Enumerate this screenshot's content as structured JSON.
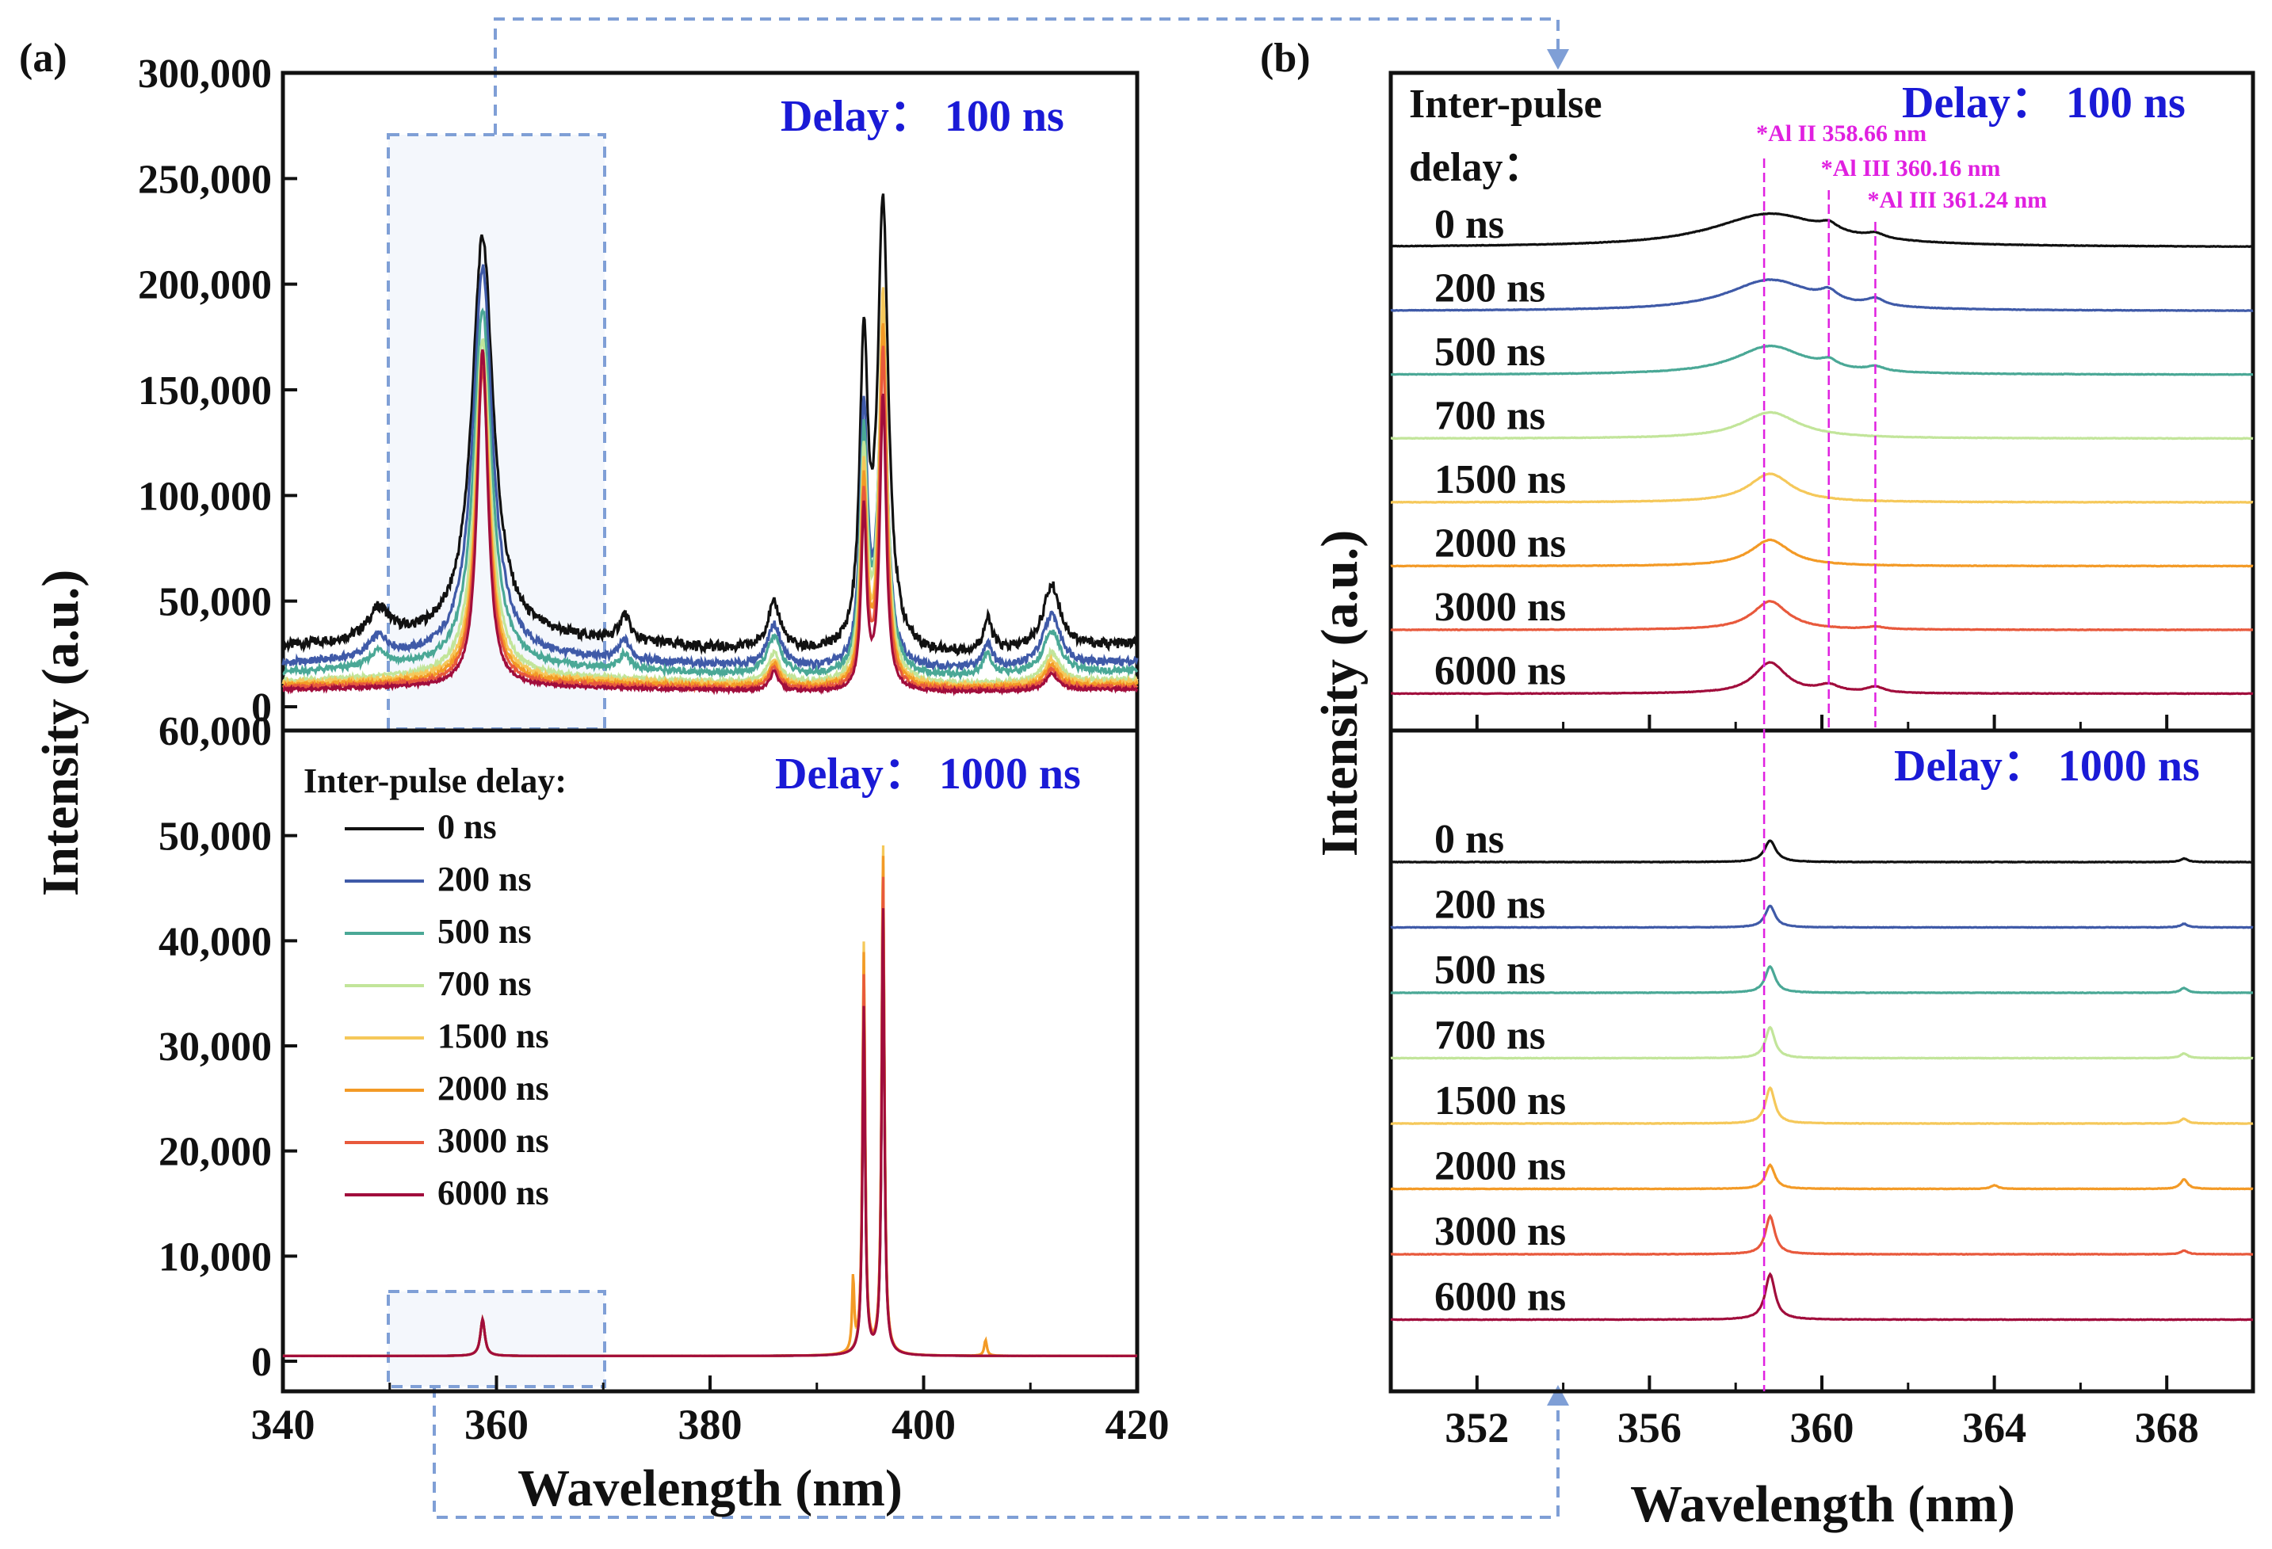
{
  "panel_labels": {
    "a": "(a)",
    "b": "(b)"
  },
  "colors": {
    "series": [
      "#111111",
      "#3f5aa8",
      "#4aa896",
      "#c2e59a",
      "#f5c85a",
      "#f39a26",
      "#e8593c",
      "#a10d3c"
    ],
    "delay_text": "#1a1ad6",
    "line_marker": "#e020e0",
    "zoom_box": "#7f9fd6"
  },
  "chart_data": [
    {
      "panel": "a-top",
      "type": "line",
      "title": "Delay：  100 ns",
      "xlabel": "Wavelength (nm)",
      "ylabel": "Intensity (a.u.)",
      "xlim": [
        340,
        420
      ],
      "ylim": [
        0,
        300000
      ],
      "yticks": [
        "0",
        "50,000",
        "100,000",
        "150,000",
        "200,000",
        "250,000",
        "300,000"
      ],
      "series": [
        {
          "name": "0 ns",
          "baseline": 28000,
          "peaks": [
            [
              349,
              14000,
              1.2
            ],
            [
              358.7,
              190000,
              1.2
            ],
            [
              372,
              12000,
              0.6
            ],
            [
              386,
              22000,
              0.8
            ],
            [
              394.4,
              140000,
              0.45
            ],
            [
              396.2,
              210000,
              0.6
            ],
            [
              406,
              15000,
              0.5
            ],
            [
              412,
              30000,
              1.0
            ]
          ]
        },
        {
          "name": "200 ns",
          "baseline": 20000,
          "peaks": [
            [
              349,
              10000,
              1.1
            ],
            [
              358.7,
              185000,
              1.1
            ],
            [
              372,
              9000,
              0.6
            ],
            [
              386,
              20000,
              0.8
            ],
            [
              394.4,
              120000,
              0.4
            ],
            [
              396.2,
              150000,
              0.5
            ],
            [
              406,
              12000,
              0.5
            ],
            [
              412,
              24000,
              1.0
            ]
          ]
        },
        {
          "name": "500 ns",
          "baseline": 16000,
          "peaks": [
            [
              349,
              8000,
              1.0
            ],
            [
              358.7,
              170000,
              1.0
            ],
            [
              372,
              7000,
              0.6
            ],
            [
              386,
              18000,
              0.8
            ],
            [
              394.4,
              110000,
              0.4
            ],
            [
              396.2,
              155000,
              0.5
            ],
            [
              406,
              10000,
              0.5
            ],
            [
              412,
              20000,
              1.0
            ]
          ]
        },
        {
          "name": "700 ns",
          "baseline": 12000,
          "peaks": [
            [
              358.7,
              160000,
              0.9
            ],
            [
              386,
              14000,
              0.7
            ],
            [
              394.4,
              105000,
              0.4
            ],
            [
              396.2,
              180000,
              0.45
            ],
            [
              412,
              14000,
              0.9
            ]
          ]
        },
        {
          "name": "1500 ns",
          "baseline": 11000,
          "peaks": [
            [
              358.7,
              155000,
              0.8
            ],
            [
              386,
              12000,
              0.6
            ],
            [
              394.4,
              100000,
              0.35
            ],
            [
              396.2,
              185000,
              0.4
            ],
            [
              412,
              12000,
              0.8
            ]
          ]
        },
        {
          "name": "2000 ns",
          "baseline": 10000,
          "peaks": [
            [
              358.7,
              150000,
              0.75
            ],
            [
              386,
              11000,
              0.6
            ],
            [
              394.4,
              95000,
              0.35
            ],
            [
              396.2,
              170000,
              0.4
            ],
            [
              412,
              10000,
              0.8
            ]
          ]
        },
        {
          "name": "3000 ns",
          "baseline": 9000,
          "peaks": [
            [
              358.7,
              150000,
              0.7
            ],
            [
              386,
              10000,
              0.6
            ],
            [
              394.4,
              90000,
              0.32
            ],
            [
              396.2,
              160000,
              0.38
            ],
            [
              412,
              9000,
              0.7
            ]
          ]
        },
        {
          "name": "6000 ns",
          "baseline": 8000,
          "peaks": [
            [
              358.7,
              160000,
              0.6
            ],
            [
              386,
              9000,
              0.5
            ],
            [
              394.4,
              85000,
              0.3
            ],
            [
              396.2,
              140000,
              0.35
            ],
            [
              412,
              8000,
              0.7
            ]
          ]
        }
      ]
    },
    {
      "panel": "a-bottom",
      "type": "line",
      "title": "Delay：  1000 ns",
      "xlabel": "Wavelength (nm)",
      "ylabel": "Intensity (a.u.)",
      "xlim": [
        340,
        420
      ],
      "xticks": [
        "340",
        "360",
        "380",
        "400",
        "420"
      ],
      "ylim": [
        0,
        60000
      ],
      "yticks": [
        "0",
        "10,000",
        "20,000",
        "30,000",
        "40,000",
        "50,000",
        "60,000"
      ],
      "legend_title": "Inter-pulse delay:",
      "series": [
        {
          "name": "0 ns",
          "baseline": 500,
          "peaks": [
            [
              358.7,
              3500,
              0.25
            ],
            [
              394.4,
              35000,
              0.15
            ],
            [
              396.2,
              45000,
              0.15
            ]
          ]
        },
        {
          "name": "200 ns",
          "baseline": 500,
          "peaks": [
            [
              358.7,
              3500,
              0.25
            ],
            [
              394.4,
              36000,
              0.15
            ],
            [
              396.2,
              46000,
              0.15
            ]
          ]
        },
        {
          "name": "500 ns",
          "baseline": 500,
          "peaks": [
            [
              358.7,
              3500,
              0.25
            ],
            [
              394.4,
              37000,
              0.15
            ],
            [
              396.2,
              47000,
              0.15
            ]
          ]
        },
        {
          "name": "700 ns",
          "baseline": 500,
          "peaks": [
            [
              358.7,
              3500,
              0.25
            ],
            [
              394.4,
              38000,
              0.15
            ],
            [
              396.2,
              48000,
              0.15
            ]
          ]
        },
        {
          "name": "1500 ns",
          "baseline": 500,
          "peaks": [
            [
              358.7,
              3500,
              0.25
            ],
            [
              393.4,
              6000,
              0.12
            ],
            [
              394.4,
              39000,
              0.15
            ],
            [
              396.2,
              49000,
              0.15
            ],
            [
              405.8,
              1500,
              0.15
            ]
          ]
        },
        {
          "name": "2000 ns",
          "baseline": 500,
          "peaks": [
            [
              358.7,
              3500,
              0.25
            ],
            [
              393.4,
              7000,
              0.12
            ],
            [
              394.4,
              38000,
              0.15
            ],
            [
              396.2,
              48000,
              0.15
            ],
            [
              405.8,
              1500,
              0.15
            ]
          ]
        },
        {
          "name": "3000 ns",
          "baseline": 500,
          "peaks": [
            [
              358.7,
              3500,
              0.25
            ],
            [
              394.4,
              36000,
              0.15
            ],
            [
              396.2,
              46000,
              0.15
            ]
          ]
        },
        {
          "name": "6000 ns",
          "baseline": 500,
          "peaks": [
            [
              358.7,
              3500,
              0.25
            ],
            [
              394.4,
              33000,
              0.15
            ],
            [
              396.2,
              43000,
              0.15
            ]
          ]
        }
      ]
    },
    {
      "panel": "b-top",
      "type": "line",
      "title": "Delay：  100 ns",
      "legend_title_line1": "Inter-pulse",
      "legend_title_line2": "delay：",
      "xlim": [
        350,
        370
      ],
      "offset_step": 0.36,
      "annotations": [
        {
          "label": "*Al II 358.66 nm",
          "x": 358.66
        },
        {
          "label": "*Al III 360.16 nm",
          "x": 360.16
        },
        {
          "label": "*Al III 361.24 nm",
          "x": 361.24
        }
      ],
      "series": [
        {
          "name": "0 ns",
          "broad": 0.28,
          "width": 1.6,
          "peaks": [
            [
              360.16,
              0.06,
              0.25
            ],
            [
              361.24,
              0.04,
              0.25
            ]
          ]
        },
        {
          "name": "200 ns",
          "broad": 0.26,
          "width": 1.2,
          "peaks": [
            [
              360.16,
              0.08,
              0.25
            ],
            [
              361.24,
              0.06,
              0.25
            ]
          ]
        },
        {
          "name": "500 ns",
          "broad": 0.24,
          "width": 1.0,
          "peaks": [
            [
              360.16,
              0.06,
              0.25
            ],
            [
              361.24,
              0.04,
              0.25
            ]
          ]
        },
        {
          "name": "700 ns",
          "broad": 0.22,
          "width": 0.8,
          "peaks": []
        },
        {
          "name": "1500 ns",
          "broad": 0.24,
          "width": 0.6,
          "peaks": []
        },
        {
          "name": "2000 ns",
          "broad": 0.22,
          "width": 0.55,
          "peaks": []
        },
        {
          "name": "3000 ns",
          "broad": 0.24,
          "width": 0.5,
          "peaks": [
            [
              361.24,
              0.02,
              0.25
            ]
          ]
        },
        {
          "name": "6000 ns",
          "broad": 0.26,
          "width": 0.45,
          "peaks": [
            [
              360.16,
              0.06,
              0.3
            ],
            [
              361.24,
              0.05,
              0.25
            ]
          ]
        }
      ]
    },
    {
      "panel": "b-bottom",
      "type": "line",
      "title": "Delay：  1000 ns",
      "xlabel": "Wavelength (nm)",
      "ylabel": "Intensity (a.u.)",
      "xlim": [
        350,
        370
      ],
      "xticks": [
        "352",
        "356",
        "360",
        "364",
        "368"
      ],
      "offset_step": 0.36,
      "series": [
        {
          "name": "0 ns",
          "broad": 0.18,
          "width": 0.16,
          "peaks": [
            [
              368.4,
              0.03,
              0.1
            ]
          ]
        },
        {
          "name": "200 ns",
          "broad": 0.18,
          "width": 0.14,
          "peaks": [
            [
              368.4,
              0.03,
              0.1
            ]
          ]
        },
        {
          "name": "500 ns",
          "broad": 0.22,
          "width": 0.14,
          "peaks": [
            [
              368.4,
              0.04,
              0.1
            ]
          ]
        },
        {
          "name": "700 ns",
          "broad": 0.26,
          "width": 0.13,
          "peaks": [
            [
              368.4,
              0.04,
              0.1
            ]
          ]
        },
        {
          "name": "1500 ns",
          "broad": 0.3,
          "width": 0.13,
          "peaks": [
            [
              368.4,
              0.04,
              0.1
            ]
          ]
        },
        {
          "name": "2000 ns",
          "broad": 0.2,
          "width": 0.13,
          "peaks": [
            [
              364,
              0.03,
              0.1
            ],
            [
              368.4,
              0.08,
              0.1
            ]
          ]
        },
        {
          "name": "3000 ns",
          "broad": 0.32,
          "width": 0.13,
          "peaks": [
            [
              368.4,
              0.03,
              0.1
            ]
          ]
        },
        {
          "name": "6000 ns",
          "broad": 0.38,
          "width": 0.14,
          "peaks": []
        }
      ]
    }
  ]
}
